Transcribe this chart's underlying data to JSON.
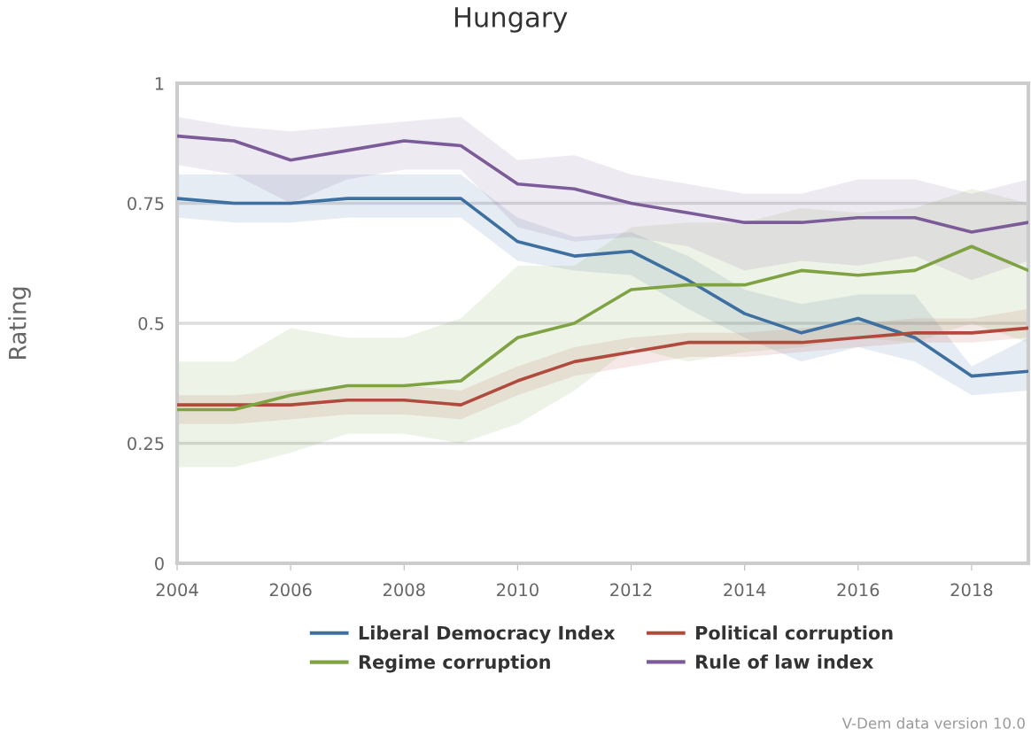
{
  "chart_data": {
    "type": "line",
    "title": "Hungary",
    "ylabel": "Rating",
    "annotations": [
      "V-Dem data version 10.0"
    ],
    "x": [
      2004,
      2005,
      2006,
      2007,
      2008,
      2009,
      2010,
      2011,
      2012,
      2013,
      2014,
      2015,
      2016,
      2017,
      2018,
      2019
    ],
    "xlim": [
      2004,
      2019
    ],
    "xticks": [
      2004,
      2006,
      2008,
      2010,
      2012,
      2014,
      2016,
      2018
    ],
    "ylim": [
      0,
      1
    ],
    "yticks": [
      0,
      0.25,
      0.5,
      0.75,
      1
    ],
    "grid": "y",
    "legend": "bottom",
    "marker": "none",
    "line_style": "solid",
    "series": [
      {
        "name": "Liberal Democracy Index",
        "color": "#3d6fa0",
        "values": [
          0.76,
          0.75,
          0.75,
          0.76,
          0.76,
          0.76,
          0.67,
          0.64,
          0.65,
          0.59,
          0.52,
          0.48,
          0.51,
          0.47,
          0.39,
          0.4
        ],
        "lower": [
          0.72,
          0.71,
          0.71,
          0.72,
          0.72,
          0.72,
          0.63,
          0.61,
          0.6,
          0.53,
          0.47,
          0.42,
          0.45,
          0.42,
          0.35,
          0.36
        ],
        "upper": [
          0.81,
          0.81,
          0.81,
          0.81,
          0.81,
          0.81,
          0.72,
          0.68,
          0.69,
          0.64,
          0.57,
          0.54,
          0.56,
          0.56,
          0.41,
          0.47
        ]
      },
      {
        "name": "Political corruption",
        "color": "#b04a3d",
        "values": [
          0.33,
          0.33,
          0.33,
          0.34,
          0.34,
          0.33,
          0.38,
          0.42,
          0.44,
          0.46,
          0.46,
          0.46,
          0.47,
          0.48,
          0.48,
          0.49
        ],
        "lower": [
          0.29,
          0.29,
          0.3,
          0.31,
          0.31,
          0.3,
          0.35,
          0.39,
          0.41,
          0.43,
          0.43,
          0.44,
          0.45,
          0.46,
          0.46,
          0.47
        ],
        "upper": [
          0.35,
          0.35,
          0.36,
          0.37,
          0.37,
          0.36,
          0.41,
          0.45,
          0.47,
          0.48,
          0.48,
          0.49,
          0.5,
          0.51,
          0.51,
          0.53
        ]
      },
      {
        "name": "Regime corruption",
        "color": "#7fa343",
        "values": [
          0.32,
          0.32,
          0.35,
          0.37,
          0.37,
          0.38,
          0.47,
          0.5,
          0.57,
          0.58,
          0.58,
          0.61,
          0.6,
          0.61,
          0.66,
          0.61
        ],
        "lower": [
          0.2,
          0.2,
          0.23,
          0.27,
          0.27,
          0.25,
          0.29,
          0.36,
          0.45,
          0.42,
          0.44,
          0.45,
          0.47,
          0.46,
          0.5,
          0.46
        ],
        "upper": [
          0.42,
          0.42,
          0.49,
          0.47,
          0.47,
          0.51,
          0.62,
          0.62,
          0.7,
          0.71,
          0.71,
          0.74,
          0.73,
          0.74,
          0.78,
          0.75
        ]
      },
      {
        "name": "Rule of law index",
        "color": "#7b5c98",
        "values": [
          0.89,
          0.88,
          0.84,
          0.86,
          0.88,
          0.87,
          0.79,
          0.78,
          0.75,
          0.73,
          0.71,
          0.71,
          0.72,
          0.72,
          0.69,
          0.71
        ],
        "lower": [
          0.83,
          0.81,
          0.75,
          0.8,
          0.82,
          0.82,
          0.7,
          0.67,
          0.68,
          0.66,
          0.61,
          0.63,
          0.62,
          0.64,
          0.59,
          0.63
        ],
        "upper": [
          0.93,
          0.91,
          0.9,
          0.91,
          0.92,
          0.93,
          0.84,
          0.85,
          0.81,
          0.79,
          0.77,
          0.77,
          0.8,
          0.8,
          0.77,
          0.8
        ]
      }
    ]
  }
}
